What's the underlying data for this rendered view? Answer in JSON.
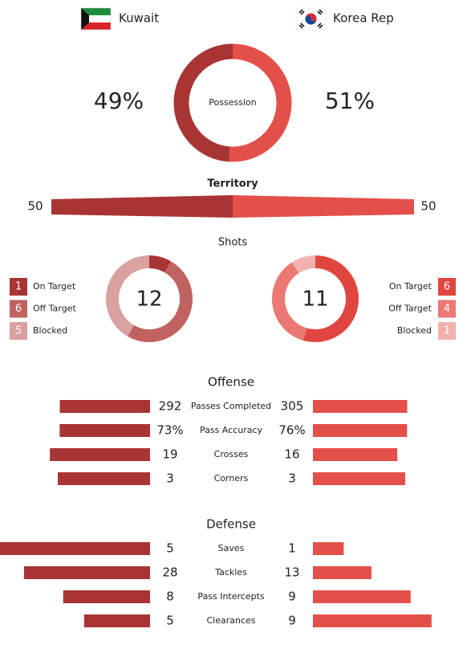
{
  "teams": {
    "home": "Kuwait",
    "away": "Korea Rep"
  },
  "colors": {
    "home": "#a83434",
    "away": "#e3504a",
    "home_shots": [
      "#a83434",
      "#c0625f",
      "#d9a19f"
    ],
    "away_shots": [
      "#e0463f",
      "#eb7873",
      "#f3b1ae"
    ]
  },
  "possession": {
    "label": "Possession",
    "values": [
      49,
      51
    ],
    "value_labels": [
      "49%",
      "51%"
    ]
  },
  "territory": {
    "title": "Territory",
    "values": [
      50,
      50
    ]
  },
  "shots": {
    "title": "Shots",
    "categories": [
      "On Target",
      "Off Target",
      "Blocked"
    ],
    "home": {
      "total": 12,
      "values": [
        1,
        6,
        5
      ]
    },
    "away": {
      "total": 11,
      "values": [
        6,
        4,
        1
      ]
    }
  },
  "offense": {
    "title": "Offense",
    "rows": [
      {
        "label": "Passes Completed",
        "values": [
          292,
          305
        ]
      },
      {
        "label": "Pass Accuracy",
        "values": [
          73,
          76
        ],
        "value_labels": [
          "73%",
          "76%"
        ]
      },
      {
        "label": "Crosses",
        "values": [
          19,
          16
        ]
      },
      {
        "label": "Corners",
        "values": [
          3,
          3
        ]
      }
    ]
  },
  "defense": {
    "title": "Defense",
    "rows": [
      {
        "label": "Saves",
        "values": [
          5,
          1
        ]
      },
      {
        "label": "Tackles",
        "values": [
          28,
          13
        ]
      },
      {
        "label": "Pass Intercepts",
        "values": [
          8,
          9
        ]
      },
      {
        "label": "Clearances",
        "values": [
          5,
          9
        ]
      }
    ]
  }
}
